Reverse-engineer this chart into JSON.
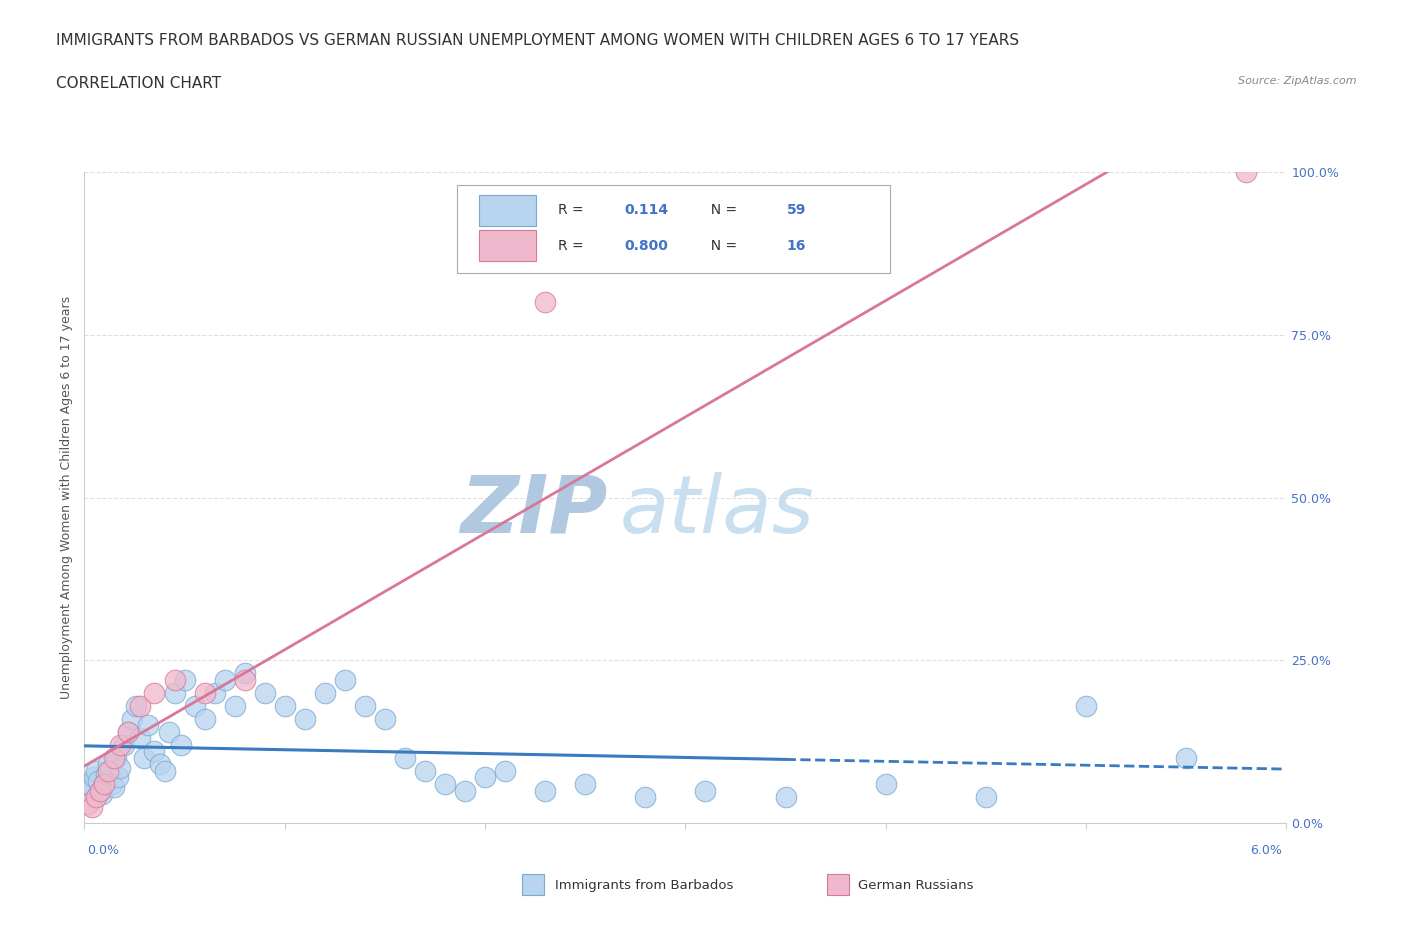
{
  "title": "IMMIGRANTS FROM BARBADOS VS GERMAN RUSSIAN UNEMPLOYMENT AMONG WOMEN WITH CHILDREN AGES 6 TO 17 YEARS",
  "subtitle": "CORRELATION CHART",
  "source": "Source: ZipAtlas.com",
  "xlabel_bottom_left": "0.0%",
  "xlabel_bottom_right": "6.0%",
  "ylabel": "Unemployment Among Women with Children Ages 6 to 17 years",
  "y_ticks": [
    0.0,
    25.0,
    50.0,
    75.0,
    100.0
  ],
  "y_tick_labels": [
    "0.0%",
    "25.0%",
    "50.0%",
    "75.0%",
    "100.0%"
  ],
  "xlim": [
    0.0,
    6.0
  ],
  "ylim": [
    0.0,
    100.0
  ],
  "series_barbados": {
    "label": "Immigrants from Barbados",
    "R": 0.114,
    "N": 59,
    "color": "#b8d4ee",
    "edge_color": "#7aaad0",
    "trend_color": "#3a7abf",
    "x": [
      0.02,
      0.03,
      0.04,
      0.05,
      0.06,
      0.07,
      0.08,
      0.09,
      0.1,
      0.11,
      0.12,
      0.13,
      0.14,
      0.15,
      0.16,
      0.17,
      0.18,
      0.2,
      0.22,
      0.24,
      0.26,
      0.28,
      0.3,
      0.32,
      0.35,
      0.38,
      0.4,
      0.42,
      0.45,
      0.48,
      0.5,
      0.55,
      0.6,
      0.65,
      0.7,
      0.75,
      0.8,
      0.9,
      1.0,
      1.1,
      1.2,
      1.3,
      1.4,
      1.5,
      1.6,
      1.7,
      1.8,
      1.9,
      2.0,
      2.1,
      2.3,
      2.5,
      2.8,
      3.1,
      3.5,
      4.0,
      4.5,
      5.0,
      5.5
    ],
    "y": [
      5.0,
      6.0,
      5.5,
      7.0,
      8.0,
      6.5,
      5.0,
      4.5,
      6.0,
      7.5,
      9.0,
      8.0,
      6.0,
      5.5,
      10.0,
      7.0,
      8.5,
      12.0,
      14.0,
      16.0,
      18.0,
      13.0,
      10.0,
      15.0,
      11.0,
      9.0,
      8.0,
      14.0,
      20.0,
      12.0,
      22.0,
      18.0,
      16.0,
      20.0,
      22.0,
      18.0,
      23.0,
      20.0,
      18.0,
      16.0,
      20.0,
      22.0,
      18.0,
      16.0,
      10.0,
      8.0,
      6.0,
      5.0,
      7.0,
      8.0,
      5.0,
      6.0,
      4.0,
      5.0,
      4.0,
      6.0,
      4.0,
      18.0,
      10.0
    ]
  },
  "series_german": {
    "label": "German Russians",
    "R": 0.8,
    "N": 16,
    "color": "#f0b8cc",
    "edge_color": "#d87898",
    "trend_color": "#d87898",
    "x": [
      0.02,
      0.04,
      0.06,
      0.08,
      0.1,
      0.12,
      0.15,
      0.18,
      0.22,
      0.28,
      0.35,
      0.45,
      0.6,
      0.8,
      2.3,
      5.8
    ],
    "y": [
      3.0,
      2.5,
      4.0,
      5.0,
      6.0,
      8.0,
      10.0,
      12.0,
      14.0,
      18.0,
      20.0,
      22.0,
      20.0,
      22.0,
      80.0,
      100.0
    ]
  },
  "watermark_zip": "ZIP",
  "watermark_atlas": "atlas",
  "watermark_zip_color": "#b0c8e0",
  "watermark_atlas_color": "#c8dff0",
  "background_color": "#ffffff",
  "grid_color": "#e0e0e0",
  "title_fontsize": 11,
  "subtitle_fontsize": 11,
  "source_fontsize": 8,
  "axis_label_fontsize": 9,
  "tick_fontsize": 9,
  "legend_value_color": "#4472c4",
  "legend_text_color": "#333333"
}
